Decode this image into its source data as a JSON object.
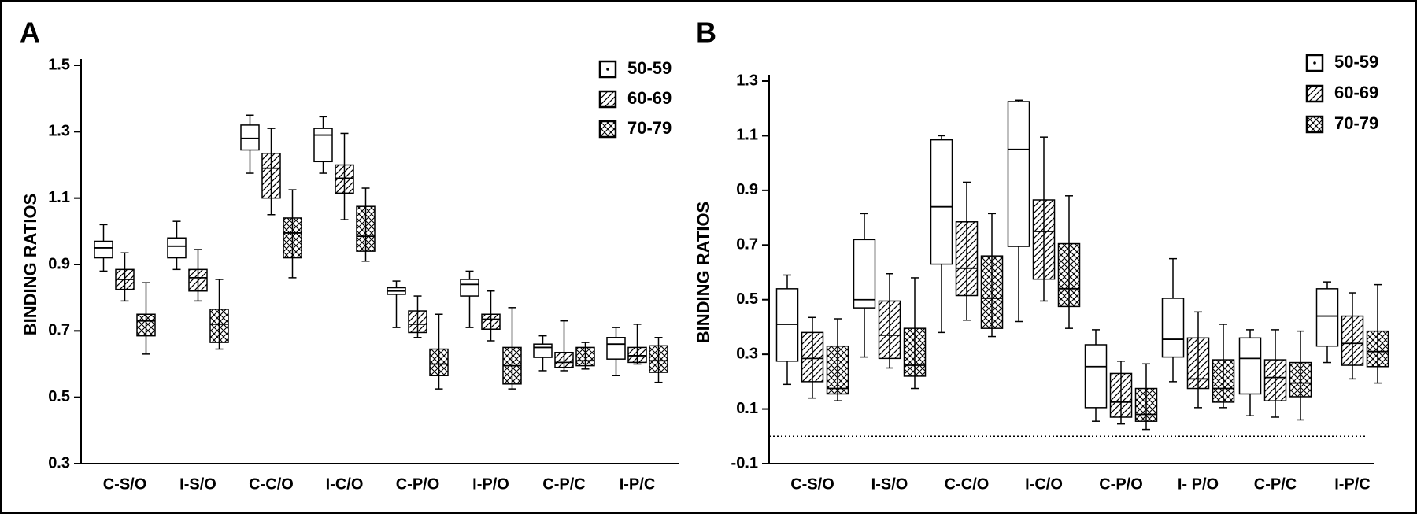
{
  "chart_data": [
    {
      "type": "box",
      "panel_label": "A",
      "y_label": "BINDING RATIOS",
      "categories": [
        "C-S/O",
        "I-S/O",
        "C-C/O",
        "I-C/O",
        "C-P/O",
        "I-P/O",
        "C-P/C",
        "I-P/C"
      ],
      "ylim": [
        0.3,
        1.5
      ],
      "yticks": [
        0.3,
        0.5,
        0.7,
        0.9,
        1.1,
        1.3,
        1.5
      ],
      "legend": "upper right",
      "series": [
        {
          "name": "50-59",
          "pattern": "none",
          "color": "#000000",
          "min": [
            0.88,
            0.885,
            1.175,
            1.175,
            0.71,
            0.71,
            0.58,
            0.565
          ],
          "q1": [
            0.92,
            0.92,
            1.245,
            1.21,
            0.81,
            0.805,
            0.62,
            0.615
          ],
          "median": [
            0.95,
            0.955,
            1.28,
            1.29,
            0.82,
            0.84,
            0.65,
            0.66
          ],
          "q3": [
            0.97,
            0.98,
            1.32,
            1.31,
            0.83,
            0.855,
            0.66,
            0.68
          ],
          "max": [
            1.02,
            1.03,
            1.35,
            1.345,
            0.85,
            0.88,
            0.685,
            0.71
          ]
        },
        {
          "name": "60-69",
          "pattern": "hatch",
          "color": "#000000",
          "min": [
            0.79,
            0.79,
            1.05,
            1.035,
            0.68,
            0.67,
            0.58,
            0.6
          ],
          "q1": [
            0.825,
            0.82,
            1.1,
            1.115,
            0.695,
            0.705,
            0.59,
            0.605
          ],
          "median": [
            0.855,
            0.86,
            1.19,
            1.16,
            0.72,
            0.735,
            0.605,
            0.625
          ],
          "q3": [
            0.885,
            0.885,
            1.235,
            1.2,
            0.76,
            0.75,
            0.635,
            0.65
          ],
          "max": [
            0.935,
            0.945,
            1.31,
            1.295,
            0.805,
            0.82,
            0.73,
            0.72
          ]
        },
        {
          "name": "70-79",
          "pattern": "crosshatch",
          "color": "#000000",
          "min": [
            0.63,
            0.645,
            0.86,
            0.91,
            0.525,
            0.525,
            0.585,
            0.545
          ],
          "q1": [
            0.685,
            0.665,
            0.92,
            0.94,
            0.565,
            0.54,
            0.595,
            0.575
          ],
          "median": [
            0.73,
            0.72,
            0.995,
            0.985,
            0.6,
            0.595,
            0.61,
            0.61
          ],
          "q3": [
            0.75,
            0.765,
            1.04,
            1.075,
            0.645,
            0.65,
            0.65,
            0.655
          ],
          "max": [
            0.845,
            0.855,
            1.125,
            1.13,
            0.75,
            0.77,
            0.665,
            0.68
          ]
        }
      ]
    },
    {
      "type": "box",
      "panel_label": "B",
      "y_label": "BINDING RATIOS",
      "categories": [
        "C-S/O",
        "I-S/O",
        "C-C/O",
        "I-C/O",
        "C-P/O",
        "I- P/O",
        "C-P/C",
        "I-P/C"
      ],
      "ylim": [
        -0.1,
        1.3
      ],
      "yticks": [
        -0.1,
        0.1,
        0.3,
        0.5,
        0.7,
        0.9,
        1.1,
        1.3
      ],
      "legend": "upper right",
      "reference_line": 0,
      "series": [
        {
          "name": "50-59",
          "pattern": "none",
          "color": "#000000",
          "min": [
            0.19,
            0.29,
            0.38,
            0.42,
            0.055,
            0.2,
            0.075,
            0.27
          ],
          "q1": [
            0.275,
            0.47,
            0.63,
            0.695,
            0.105,
            0.29,
            0.155,
            0.33
          ],
          "median": [
            0.41,
            0.5,
            0.84,
            1.05,
            0.255,
            0.355,
            0.285,
            0.44
          ],
          "q3": [
            0.54,
            0.72,
            1.085,
            1.225,
            0.335,
            0.505,
            0.36,
            0.54
          ],
          "max": [
            0.59,
            0.815,
            1.1,
            1.23,
            0.39,
            0.65,
            0.39,
            0.565
          ]
        },
        {
          "name": "60-69",
          "pattern": "hatch",
          "color": "#000000",
          "min": [
            0.14,
            0.25,
            0.425,
            0.495,
            0.045,
            0.105,
            0.07,
            0.21
          ],
          "q1": [
            0.2,
            0.285,
            0.515,
            0.575,
            0.07,
            0.175,
            0.13,
            0.26
          ],
          "median": [
            0.285,
            0.37,
            0.615,
            0.75,
            0.125,
            0.21,
            0.215,
            0.34
          ],
          "q3": [
            0.38,
            0.495,
            0.785,
            0.865,
            0.23,
            0.36,
            0.28,
            0.44
          ],
          "max": [
            0.435,
            0.595,
            0.93,
            1.095,
            0.275,
            0.455,
            0.39,
            0.525
          ]
        },
        {
          "name": "70-79",
          "pattern": "crosshatch",
          "color": "#000000",
          "min": [
            0.13,
            0.175,
            0.365,
            0.395,
            0.025,
            0.105,
            0.06,
            0.195
          ],
          "q1": [
            0.155,
            0.22,
            0.395,
            0.475,
            0.055,
            0.125,
            0.145,
            0.255
          ],
          "median": [
            0.175,
            0.26,
            0.505,
            0.54,
            0.08,
            0.175,
            0.195,
            0.31
          ],
          "q3": [
            0.33,
            0.395,
            0.66,
            0.705,
            0.175,
            0.28,
            0.27,
            0.385
          ],
          "max": [
            0.43,
            0.58,
            0.815,
            0.88,
            0.265,
            0.41,
            0.385,
            0.555
          ]
        }
      ]
    }
  ]
}
